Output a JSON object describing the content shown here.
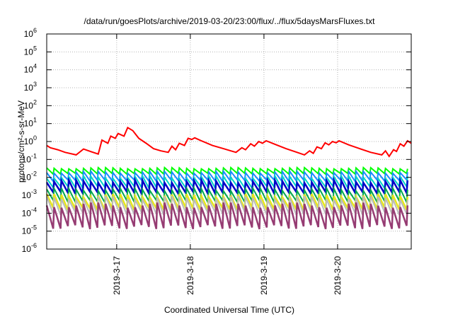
{
  "chart_data": {
    "type": "line",
    "title": "/data/run/goesPlots/archive/2019-03-20/23:00/flux/../flux/5daysMarsFluxes.txt",
    "xlabel": "Coordinated Universal Time (UTC)",
    "ylabel": "protons/cm²-s-sr-MeV",
    "x_range_days": [
      16.05,
      21.0
    ],
    "x_ticks": [
      {
        "label": "2019-3-17",
        "day": 17
      },
      {
        "label": "2019-3-18",
        "day": 18
      },
      {
        "label": "2019-3-19",
        "day": 19
      },
      {
        "label": "2019-3-20",
        "day": 20
      }
    ],
    "y_scale": "log",
    "ylim": [
      1e-06,
      1000000.0
    ],
    "y_ticks": [
      {
        "base": "10",
        "exp": "-6",
        "value": 1e-06
      },
      {
        "base": "10",
        "exp": "-5",
        "value": 1e-05
      },
      {
        "base": "10",
        "exp": "-4",
        "value": 0.0001
      },
      {
        "base": "10",
        "exp": "-3",
        "value": 0.001
      },
      {
        "base": "10",
        "exp": "-2",
        "value": 0.01
      },
      {
        "base": "10",
        "exp": "-1",
        "value": 0.1
      },
      {
        "base": "10",
        "exp": "0",
        "value": 1
      },
      {
        "base": "10",
        "exp": "1",
        "value": 10
      },
      {
        "base": "10",
        "exp": "2",
        "value": 100
      },
      {
        "base": "10",
        "exp": "3",
        "value": 1000
      },
      {
        "base": "10",
        "exp": "4",
        "value": 10000
      },
      {
        "base": "10",
        "exp": "5",
        "value": 100000
      },
      {
        "base": "10",
        "exp": "6",
        "value": 1000000
      }
    ],
    "grid": true,
    "series": [
      {
        "color": "#ff0000",
        "points": [
          [
            16.05,
            0.6
          ],
          [
            16.1,
            0.45
          ],
          [
            16.2,
            0.35
          ],
          [
            16.3,
            0.25
          ],
          [
            16.45,
            0.18
          ],
          [
            16.55,
            0.38
          ],
          [
            16.62,
            0.3
          ],
          [
            16.75,
            0.2
          ],
          [
            16.8,
            1.2
          ],
          [
            16.88,
            0.8
          ],
          [
            16.92,
            2.0
          ],
          [
            16.98,
            1.5
          ],
          [
            17.02,
            2.8
          ],
          [
            17.1,
            2.0
          ],
          [
            17.15,
            6.0
          ],
          [
            17.22,
            4.0
          ],
          [
            17.3,
            1.5
          ],
          [
            17.4,
            0.8
          ],
          [
            17.5,
            0.4
          ],
          [
            17.6,
            0.3
          ],
          [
            17.7,
            0.25
          ],
          [
            17.75,
            0.55
          ],
          [
            17.8,
            0.35
          ],
          [
            17.85,
            0.8
          ],
          [
            17.92,
            0.6
          ],
          [
            17.97,
            1.5
          ],
          [
            18.02,
            1.3
          ],
          [
            18.06,
            1.6
          ],
          [
            18.15,
            1.1
          ],
          [
            18.3,
            0.6
          ],
          [
            18.45,
            0.4
          ],
          [
            18.55,
            0.3
          ],
          [
            18.62,
            0.25
          ],
          [
            18.7,
            0.45
          ],
          [
            18.75,
            0.35
          ],
          [
            18.82,
            0.75
          ],
          [
            18.87,
            0.55
          ],
          [
            18.93,
            1.0
          ],
          [
            18.98,
            0.8
          ],
          [
            19.03,
            1.1
          ],
          [
            19.15,
            0.7
          ],
          [
            19.3,
            0.4
          ],
          [
            19.45,
            0.25
          ],
          [
            19.55,
            0.18
          ],
          [
            19.62,
            0.3
          ],
          [
            19.67,
            0.22
          ],
          [
            19.72,
            0.5
          ],
          [
            19.78,
            0.4
          ],
          [
            19.83,
            0.85
          ],
          [
            19.88,
            0.65
          ],
          [
            19.93,
            1.0
          ],
          [
            19.98,
            0.85
          ],
          [
            20.02,
            1.1
          ],
          [
            20.15,
            0.65
          ],
          [
            20.3,
            0.4
          ],
          [
            20.45,
            0.25
          ],
          [
            20.6,
            0.18
          ],
          [
            20.65,
            0.3
          ],
          [
            20.7,
            0.15
          ],
          [
            20.76,
            0.35
          ],
          [
            20.8,
            0.28
          ],
          [
            20.85,
            0.75
          ],
          [
            20.9,
            0.55
          ],
          [
            20.95,
            1.1
          ],
          [
            21.0,
            0.8
          ]
        ]
      },
      {
        "color": "#00ff00",
        "type": "periodic",
        "peak": 0.035,
        "trough": 0.015,
        "width": 2
      },
      {
        "color": "#1a8cff",
        "type": "periodic",
        "peak": 0.022,
        "trough": 0.006,
        "width": 2
      },
      {
        "color": "#00d2c8",
        "type": "periodic",
        "peak": 0.012,
        "trough": 0.0025,
        "width": 2
      },
      {
        "color": "#0000c8",
        "type": "periodic",
        "peak": 0.007,
        "trough": 0.0012,
        "width": 2.5
      },
      {
        "color": "#00a850",
        "type": "periodic",
        "peak": 0.0025,
        "trough": 0.0004,
        "width": 2
      },
      {
        "color": "#e6e61e",
        "type": "periodic",
        "peak": 0.0012,
        "trough": 0.00015,
        "width": 2.5
      },
      {
        "color": "#bbbbbb",
        "type": "periodic",
        "peak": 0.0009,
        "trough": 8e-05,
        "width": 2
      },
      {
        "color": "#963c73",
        "type": "periodic",
        "peak": 0.0004,
        "trough": 1.3e-05,
        "width": 2.5
      }
    ]
  }
}
